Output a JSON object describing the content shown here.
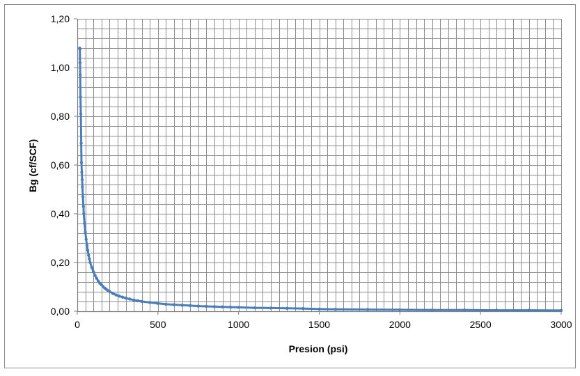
{
  "chart_data": {
    "type": "scatter",
    "title": "",
    "xlabel": "Presion (psi)",
    "ylabel": "Bg (cf/SCF)",
    "xlim": [
      0,
      3000
    ],
    "ylim": [
      0,
      1.2
    ],
    "x_ticks": [
      "0",
      "500",
      "1000",
      "1500",
      "2000",
      "2500",
      "3000"
    ],
    "y_ticks": [
      "0,00",
      "0,20",
      "0,40",
      "0,60",
      "0,80",
      "1,00",
      "1,20"
    ],
    "grid": true,
    "minor_grid_x_step": 50,
    "minor_grid_y_step": 0.04,
    "legend": "none",
    "series_color": "#4a7ebb",
    "series": [
      {
        "marker": "dot",
        "line": true,
        "x": [
          15,
          16,
          17,
          18,
          20,
          22,
          24,
          26,
          28,
          30,
          32,
          35,
          38,
          40,
          45,
          50,
          55,
          60,
          65,
          70,
          75,
          80,
          90,
          100,
          110,
          120,
          130,
          140,
          150,
          160,
          170,
          180,
          190,
          200,
          220,
          240,
          260,
          280,
          300,
          325,
          350,
          375,
          400,
          450,
          500,
          550,
          600,
          650,
          700,
          750,
          800,
          850,
          900,
          950,
          1000,
          1100,
          1200,
          1300,
          1400,
          1500,
          1600,
          1800,
          2000,
          2200,
          2400,
          2600,
          2800,
          3000
        ],
        "y": [
          1.08,
          1.075,
          1.02,
          0.97,
          0.88,
          0.81,
          0.69,
          0.61,
          0.57,
          0.54,
          0.51,
          0.47,
          0.43,
          0.4,
          0.36,
          0.325,
          0.295,
          0.27,
          0.25,
          0.23,
          0.215,
          0.2,
          0.18,
          0.162,
          0.147,
          0.135,
          0.124,
          0.115,
          0.108,
          0.101,
          0.095,
          0.09,
          0.085,
          0.081,
          0.073,
          0.067,
          0.062,
          0.058,
          0.054,
          0.05,
          0.046,
          0.043,
          0.04,
          0.036,
          0.032,
          0.029,
          0.027,
          0.025,
          0.023,
          0.021,
          0.02,
          0.019,
          0.018,
          0.017,
          0.016,
          0.014,
          0.013,
          0.012,
          0.011,
          0.009,
          0.008,
          0.007,
          0.006,
          0.005,
          0.005,
          0.004,
          0.004,
          0.003
        ]
      }
    ]
  }
}
